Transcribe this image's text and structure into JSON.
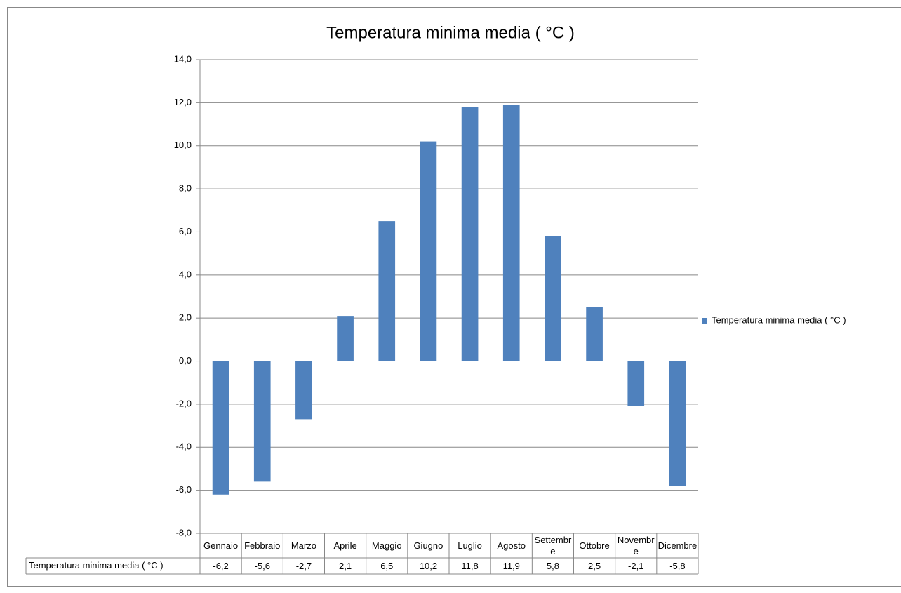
{
  "chart_data": {
    "type": "bar",
    "title": "Temperatura minima media ( °C )",
    "categories": [
      "Gennaio",
      "Febbraio",
      "Marzo",
      "Aprile",
      "Maggio",
      "Giugno",
      "Luglio",
      "Agosto",
      "Settembre",
      "Ottobre",
      "Novembre",
      "Dicembre"
    ],
    "series": [
      {
        "name": "Temperatura minima  media ( °C )",
        "color": "#4f81bd",
        "values": [
          -6.2,
          -5.6,
          -2.7,
          2.1,
          6.5,
          10.2,
          11.8,
          11.9,
          5.8,
          2.5,
          -2.1,
          -5.8
        ],
        "value_labels": [
          "-6,2",
          "-5,6",
          "-2,7",
          "2,1",
          "6,5",
          "10,2",
          "11,8",
          "11,9",
          "5,8",
          "2,5",
          "-2,1",
          "-5,8"
        ]
      }
    ],
    "ylim": [
      -8,
      14
    ],
    "yticks": [
      {
        "value": -8,
        "label": "-8,0"
      },
      {
        "value": -6,
        "label": "-6,0"
      },
      {
        "value": -4,
        "label": "-4,0"
      },
      {
        "value": -2,
        "label": "-2,0"
      },
      {
        "value": 0,
        "label": "0,0"
      },
      {
        "value": 2,
        "label": "2,0"
      },
      {
        "value": 4,
        "label": "4,0"
      },
      {
        "value": 6,
        "label": "6,0"
      },
      {
        "value": 8,
        "label": "8,0"
      },
      {
        "value": 10,
        "label": "10,0"
      },
      {
        "value": 12,
        "label": "12,0"
      },
      {
        "value": 14,
        "label": "14,0"
      }
    ],
    "grid": true,
    "legend": "right",
    "data_table": true
  }
}
